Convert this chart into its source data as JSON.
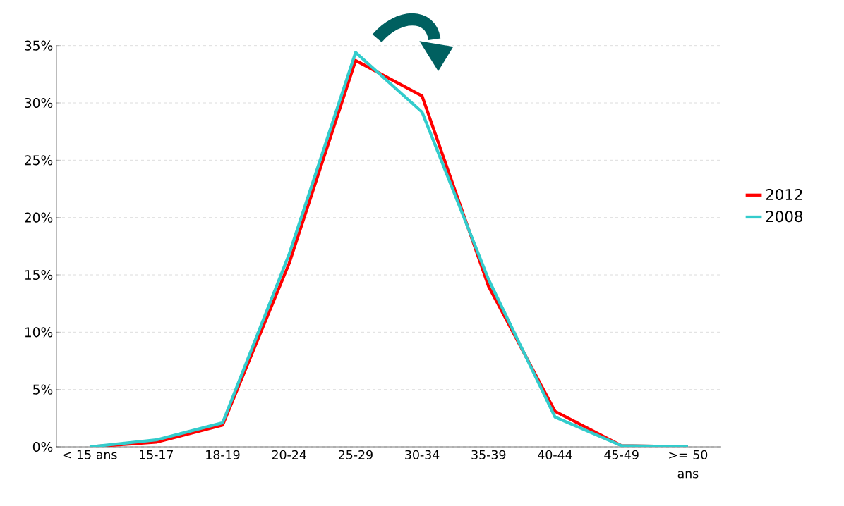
{
  "chart_data": {
    "type": "line",
    "categories": [
      "< 15 ans",
      "15-17",
      "18-19",
      "20-24",
      "25-29",
      "30-34",
      "35-39",
      "40-44",
      "45-49",
      ">= 50 ans"
    ],
    "series": [
      {
        "name": "2012",
        "color": "#ff0000",
        "values": [
          0,
          0.4,
          1.9,
          16.0,
          33.7,
          30.6,
          14.0,
          3.1,
          0.1,
          0
        ]
      },
      {
        "name": "2008",
        "color": "#33cccc",
        "values": [
          0,
          0.6,
          2.1,
          16.8,
          34.4,
          29.2,
          14.6,
          2.6,
          0.1,
          0
        ]
      }
    ],
    "ylim": [
      0,
      35
    ],
    "yticks": [
      {
        "value": 0,
        "label": "0%"
      },
      {
        "value": 5,
        "label": "5%"
      },
      {
        "value": 10,
        "label": "10%"
      },
      {
        "value": 15,
        "label": "15%"
      },
      {
        "value": 20,
        "label": "20%"
      },
      {
        "value": 25,
        "label": "25%"
      },
      {
        "value": 30,
        "label": "30%"
      },
      {
        "value": 35,
        "label": "35%"
      }
    ],
    "grid": "y",
    "legend": "right",
    "marker": "none",
    "line_style": "solid"
  }
}
